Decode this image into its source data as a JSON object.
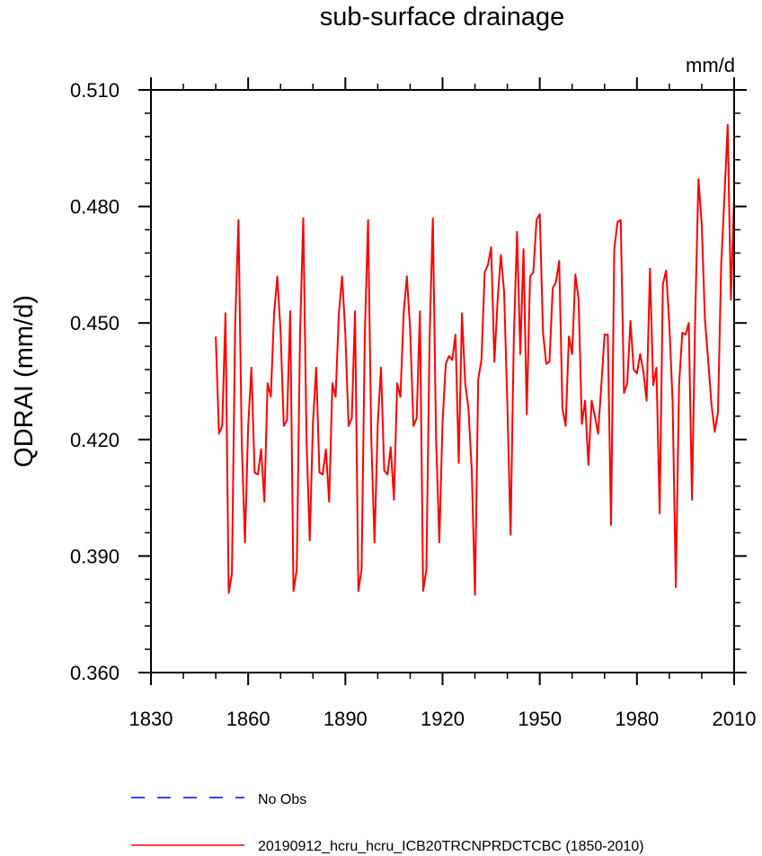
{
  "chart_data": {
    "type": "line",
    "title": "sub-surface drainage",
    "units": "mm/d",
    "ylabel": "QDRAI  (mm/d)",
    "xlabel": "",
    "xlim": [
      1830,
      2010
    ],
    "ylim": [
      0.36,
      0.51
    ],
    "xticks": [
      "1830",
      "1860",
      "1890",
      "1920",
      "1950",
      "1980",
      "2010"
    ],
    "yticks": [
      "0.360",
      "0.390",
      "0.420",
      "0.450",
      "0.480",
      "0.510"
    ],
    "grid": false,
    "legend_position": "bottom",
    "legend": [
      {
        "label": "No Obs",
        "color": "#0000ff",
        "style": "dashed"
      },
      {
        "label": "20190912_hcru_hcru_ICB20TRCNPRDCTCBC (1850-2010)",
        "color": "#ff0000",
        "style": "solid"
      }
    ],
    "series": [
      {
        "name": "20190912_hcru_hcru_ICB20TRCNPRDCTCBC (1850-2010)",
        "color": "#ff0000",
        "x": [
          1850,
          1851,
          1852,
          1853,
          1854,
          1855,
          1856,
          1857,
          1858,
          1859,
          1860,
          1861,
          1862,
          1863,
          1864,
          1865,
          1866,
          1867,
          1868,
          1869,
          1870,
          1871,
          1872,
          1873,
          1874,
          1875,
          1876,
          1877,
          1878,
          1879,
          1880,
          1881,
          1882,
          1883,
          1884,
          1885,
          1886,
          1887,
          1888,
          1889,
          1890,
          1891,
          1892,
          1893,
          1894,
          1895,
          1896,
          1897,
          1898,
          1899,
          1900,
          1901,
          1902,
          1903,
          1904,
          1905,
          1906,
          1907,
          1908,
          1909,
          1910,
          1911,
          1912,
          1913,
          1914,
          1915,
          1916,
          1917,
          1918,
          1919,
          1920,
          1921,
          1922,
          1923,
          1924,
          1925,
          1926,
          1927,
          1928,
          1929,
          1930,
          1931,
          1932,
          1933,
          1934,
          1935,
          1936,
          1937,
          1938,
          1939,
          1940,
          1941,
          1942,
          1943,
          1944,
          1945,
          1946,
          1947,
          1948,
          1949,
          1950,
          1951,
          1952,
          1953,
          1954,
          1955,
          1956,
          1957,
          1958,
          1959,
          1960,
          1961,
          1962,
          1963,
          1964,
          1965,
          1966,
          1967,
          1968,
          1969,
          1970,
          1971,
          1972,
          1973,
          1974,
          1975,
          1976,
          1977,
          1978,
          1979,
          1980,
          1981,
          1982,
          1983,
          1984,
          1985,
          1986,
          1987,
          1988,
          1989,
          1990,
          1991,
          1992,
          1993,
          1994,
          1995,
          1996,
          1997,
          1998,
          1999,
          2000,
          2001,
          2002,
          2003,
          2004,
          2005,
          2006,
          2007,
          2008,
          2009,
          2010
        ],
        "y": [
          0.4465,
          0.4215,
          0.4235,
          0.4525,
          0.3805,
          0.3855,
          0.4495,
          0.4765,
          0.4195,
          0.3935,
          0.4235,
          0.4385,
          0.4115,
          0.411,
          0.4175,
          0.404,
          0.4345,
          0.431,
          0.4525,
          0.462,
          0.448,
          0.4235,
          0.425,
          0.453,
          0.381,
          0.3865,
          0.447,
          0.477,
          0.42,
          0.394,
          0.4245,
          0.4385,
          0.4115,
          0.411,
          0.4175,
          0.404,
          0.4345,
          0.431,
          0.4525,
          0.462,
          0.4475,
          0.4235,
          0.4255,
          0.453,
          0.381,
          0.3865,
          0.447,
          0.4765,
          0.42,
          0.3935,
          0.424,
          0.4385,
          0.412,
          0.411,
          0.418,
          0.4045,
          0.4345,
          0.431,
          0.4525,
          0.462,
          0.4485,
          0.4235,
          0.4255,
          0.453,
          0.381,
          0.3865,
          0.4465,
          0.477,
          0.42,
          0.3935,
          0.4245,
          0.4395,
          0.4415,
          0.4405,
          0.447,
          0.414,
          0.4525,
          0.4345,
          0.428,
          0.412,
          0.38,
          0.4355,
          0.4405,
          0.463,
          0.465,
          0.4695,
          0.44,
          0.456,
          0.4675,
          0.458,
          0.429,
          0.3955,
          0.446,
          0.4735,
          0.442,
          0.469,
          0.4265,
          0.462,
          0.463,
          0.4765,
          0.478,
          0.4475,
          0.4395,
          0.44,
          0.459,
          0.4605,
          0.466,
          0.428,
          0.4235,
          0.4465,
          0.442,
          0.4625,
          0.456,
          0.424,
          0.43,
          0.4135,
          0.43,
          0.426,
          0.4215,
          0.434,
          0.447,
          0.447,
          0.398,
          0.469,
          0.476,
          0.4765,
          0.432,
          0.4345,
          0.4505,
          0.438,
          0.437,
          0.442,
          0.4375,
          0.43,
          0.464,
          0.434,
          0.4385,
          0.401,
          0.46,
          0.4635,
          0.4495,
          0.43,
          0.382,
          0.434,
          0.4475,
          0.447,
          0.45,
          0.4045,
          0.452,
          0.487,
          0.4755,
          0.451,
          0.44,
          0.429,
          0.422,
          0.427,
          0.465,
          0.4825,
          0.501,
          0.456,
          0.4825
        ]
      }
    ]
  }
}
